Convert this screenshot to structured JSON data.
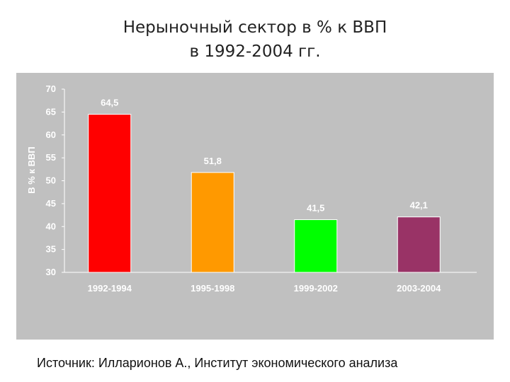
{
  "title_line1": "Нерыночный сектор в % к ВВП",
  "title_line2": "в 1992-2004 гг.",
  "source": "Источник: Илларионов А., Институт экономического анализа",
  "colors": {
    "panel_bg": "#c0c0c0",
    "bar_colors": [
      "#ff0000",
      "#ff9900",
      "#00ff00",
      "#993366"
    ]
  },
  "chart_data": {
    "type": "bar",
    "title": "",
    "xlabel": "",
    "ylabel": "В % к ВВП",
    "categories": [
      "1992-1994",
      "1995-1998",
      "1999-2002",
      "2003-2004"
    ],
    "values": [
      64.5,
      51.8,
      41.5,
      42.1
    ],
    "value_labels": [
      "64,5",
      "51,8",
      "41,5",
      "42,1"
    ],
    "ylim": [
      30,
      70
    ],
    "yticks": [
      30,
      35,
      40,
      45,
      50,
      55,
      60,
      65,
      70
    ],
    "ytick_labels": [
      "30",
      "35",
      "40",
      "45",
      "50",
      "55",
      "60",
      "65",
      "70"
    ],
    "grid": false,
    "legend": "none"
  }
}
